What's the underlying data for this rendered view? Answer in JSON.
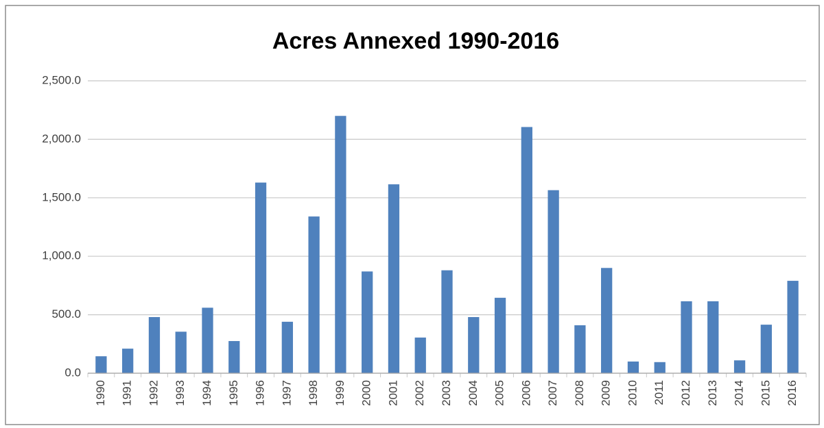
{
  "chart_data": {
    "type": "bar",
    "title": "Acres Annexed 1990-2016",
    "categories": [
      "1990",
      "1991",
      "1992",
      "1993",
      "1994",
      "1995",
      "1996",
      "1997",
      "1998",
      "1999",
      "2000",
      "2001",
      "2002",
      "2003",
      "2004",
      "2005",
      "2006",
      "2007",
      "2008",
      "2009",
      "2010",
      "2011",
      "2012",
      "2013",
      "2014",
      "2015",
      "2016"
    ],
    "values": [
      145,
      210,
      480,
      355,
      560,
      275,
      1630,
      440,
      1340,
      2200,
      870,
      1615,
      305,
      880,
      480,
      645,
      2105,
      1565,
      410,
      900,
      100,
      95,
      615,
      615,
      110,
      415,
      790
    ],
    "color": "#4f81bd",
    "ylim": [
      0,
      2500
    ],
    "yticks": [
      {
        "value": 0,
        "label": "0.0"
      },
      {
        "value": 500,
        "label": "500.0"
      },
      {
        "value": 1000,
        "label": "1,000.0"
      },
      {
        "value": 1500,
        "label": "1,500.0"
      },
      {
        "value": 2000,
        "label": "2,000.0"
      },
      {
        "value": 2500,
        "label": "2,500.0"
      }
    ],
    "grid": true
  }
}
